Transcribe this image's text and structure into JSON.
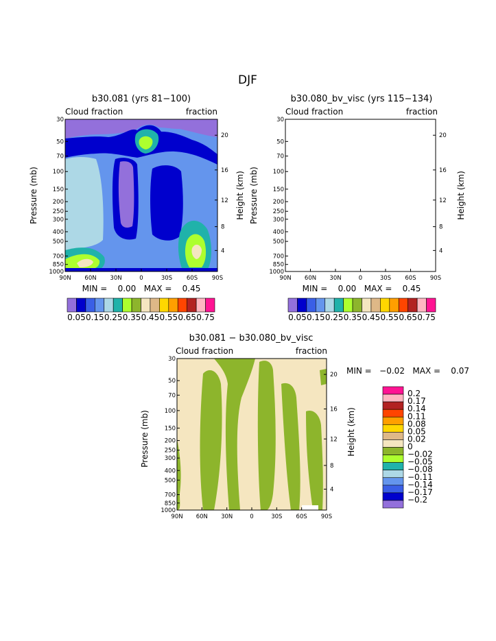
{
  "main_title": "DJF",
  "scale_colors": [
    "#9370DB",
    "#0000CD",
    "#3A5FE6",
    "#6495ED",
    "#ADD8E6",
    "#20B2AA",
    "#ADFF2F",
    "#8DB52C",
    "#F5E6C0",
    "#DEB887",
    "#FFD700",
    "#FF9F00",
    "#FF4500",
    "#B22222",
    "#FFB6C1",
    "#FF1493"
  ],
  "chart_data": [
    {
      "type": "heatmap",
      "title": "b30.081 (yrs 81−100)",
      "field_label": "Cloud fraction",
      "units_label": "fraction",
      "stats": "MIN =    0.00   MAX =    0.45",
      "xlabel": "",
      "ylabel": "Pressure (mb)",
      "ylabel_right": "Height (km)",
      "x_ticks": [
        "90N",
        "60N",
        "30N",
        "0",
        "30S",
        "60S",
        "90S"
      ],
      "y_ticks": [
        "30",
        "50",
        "70",
        "100",
        "150",
        "200",
        "250",
        "300",
        "400",
        "500",
        "700",
        "850",
        "1000"
      ],
      "y_right_ticks": [
        "20",
        "16",
        "12",
        "8",
        "4"
      ],
      "ylim": [
        1000,
        30
      ],
      "colorbar": {
        "labels": [
          "0.05",
          "0.15",
          "0.25",
          "0.35",
          "0.45",
          "0.55",
          "0.65",
          "0.75"
        ],
        "levels": [
          0.05,
          0.1,
          0.15,
          0.2,
          0.25,
          0.3,
          0.35,
          0.4,
          0.45,
          0.5,
          0.55,
          0.6,
          0.65,
          0.7,
          0.75
        ]
      }
    },
    {
      "type": "heatmap",
      "title": "b30.080_bv_visc (yrs 115−134)",
      "field_label": "Cloud fraction",
      "units_label": "fraction",
      "stats": "MIN =    0.00   MAX =    0.45",
      "xlabel": "",
      "ylabel": "Pressure (mb)",
      "ylabel_right": "Height (km)",
      "x_ticks": [
        "90N",
        "60N",
        "30N",
        "0",
        "30S",
        "60S",
        "90S"
      ],
      "y_ticks": [
        "30",
        "50",
        "70",
        "100",
        "150",
        "200",
        "250",
        "300",
        "400",
        "500",
        "700",
        "850",
        "1000"
      ],
      "y_right_ticks": [
        "20",
        "16",
        "12",
        "8",
        "4"
      ],
      "ylim": [
        1000,
        30
      ],
      "colorbar": {
        "labels": [
          "0.05",
          "0.15",
          "0.25",
          "0.35",
          "0.45",
          "0.55",
          "0.65",
          "0.75"
        ],
        "levels": [
          0.05,
          0.1,
          0.15,
          0.2,
          0.25,
          0.3,
          0.35,
          0.4,
          0.45,
          0.5,
          0.55,
          0.6,
          0.65,
          0.7,
          0.75
        ]
      }
    },
    {
      "type": "heatmap",
      "title": "b30.081 − b30.080_bv_visc",
      "field_label": "Cloud fraction",
      "units_label": "fraction",
      "stats": "MIN =   −0.02   MAX =    0.07",
      "xlabel": "",
      "ylabel": "Pressure (mb)",
      "ylabel_right": "Height (km)",
      "x_ticks": [
        "90N",
        "60N",
        "30N",
        "0",
        "30S",
        "60S",
        "90S"
      ],
      "y_ticks": [
        "30",
        "50",
        "70",
        "100",
        "150",
        "200",
        "250",
        "300",
        "400",
        "500",
        "700",
        "850",
        "1000"
      ],
      "y_right_ticks": [
        "20",
        "16",
        "12",
        "8",
        "4"
      ],
      "ylim": [
        1000,
        30
      ],
      "colorbar": {
        "labels": [
          "0.2",
          "0.17",
          "0.14",
          "0.11",
          "0.08",
          "0.05",
          "0.02",
          "0",
          "−0.02",
          "−0.05",
          "−0.08",
          "−0.11",
          "−0.14",
          "−0.17",
          "−0.2"
        ],
        "levels": [
          0.2,
          0.17,
          0.14,
          0.11,
          0.08,
          0.05,
          0.02,
          0,
          -0.02,
          -0.05,
          -0.08,
          -0.11,
          -0.14,
          -0.17,
          -0.2
        ]
      }
    }
  ]
}
